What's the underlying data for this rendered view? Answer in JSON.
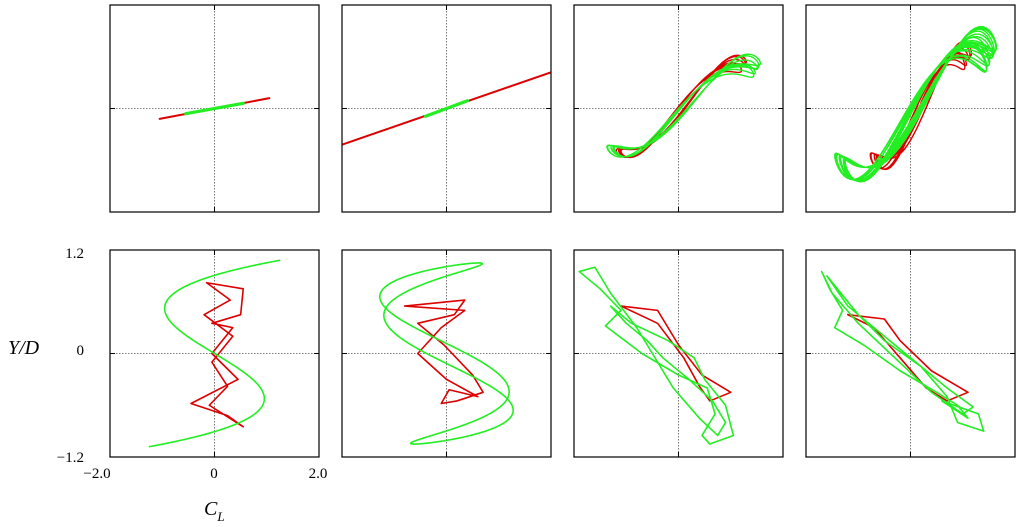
{
  "colors": {
    "red": "#dd0000",
    "green": "#22ee22",
    "axes": "#000000",
    "zero_line": "#555555"
  },
  "chart_data": {
    "type": "line",
    "layout": "2 rows x 4 columns of phase plots",
    "xlabel": "C",
    "xlabel_sub": "L",
    "ylabel": "Y/D",
    "xlim": [
      -2.0,
      2.0
    ],
    "ylim": [
      -1.2,
      1.2
    ],
    "x_tick_labels": [
      "−2.0",
      "0",
      "2.0"
    ],
    "y_tick_labels": [
      "1.2",
      "0",
      "−1.2"
    ],
    "zero_lines": true,
    "series_colors": [
      "red",
      "green"
    ],
    "panels": [
      {
        "row": 1,
        "col": 1,
        "series": [
          {
            "color": "red",
            "kind": "segment",
            "x": [
              -1.05,
              1.05
            ],
            "y": [
              -0.12,
              0.12
            ]
          },
          {
            "color": "green",
            "kind": "segment",
            "x": [
              -0.55,
              0.55
            ],
            "y": [
              -0.06,
              0.06
            ]
          }
        ]
      },
      {
        "row": 1,
        "col": 2,
        "series": [
          {
            "color": "red",
            "kind": "segment",
            "x": [
              -2.0,
              2.0
            ],
            "y": [
              -0.42,
              0.42
            ]
          },
          {
            "color": "green",
            "kind": "segment",
            "x": [
              -0.4,
              0.4
            ],
            "y": [
              -0.09,
              0.09
            ]
          }
        ]
      },
      {
        "row": 1,
        "col": 3,
        "series": [
          {
            "color": "red",
            "kind": "ribbon",
            "cx": 0.05,
            "amp": 1.2,
            "y_amp": 0.6,
            "slope": 0.5,
            "wave": 0.12,
            "turns": 4,
            "spread": 0.05
          },
          {
            "color": "green",
            "kind": "ribbon",
            "cx": 0.1,
            "amp": 1.4,
            "y_amp": 0.58,
            "slope": 0.45,
            "wave": 0.14,
            "turns": 5,
            "spread": 0.07
          }
        ]
      },
      {
        "row": 1,
        "col": 4,
        "series": [
          {
            "color": "red",
            "kind": "ribbon",
            "cx": 0.2,
            "amp": 0.9,
            "y_amp": 0.72,
            "slope": 0.6,
            "wave": 0.18,
            "turns": 5,
            "spread": 0.07
          },
          {
            "color": "green",
            "kind": "ribbon",
            "cx": 0.1,
            "amp": 1.45,
            "y_amp": 0.82,
            "slope": 0.55,
            "wave": 0.26,
            "turns": 12,
            "spread": 0.1
          }
        ]
      },
      {
        "row": 2,
        "col": 1,
        "series": [
          {
            "color": "red",
            "kind": "points",
            "x": [
              -0.15,
              0.55,
              0.5,
              -0.05,
              0.35,
              -0.05,
              0.45,
              -0.45,
              0.25,
              0.55,
              -0.1,
              0.25,
              -0.05,
              0.35,
              -0.2,
              0.3,
              -0.15
            ],
            "y": [
              0.82,
              0.75,
              0.45,
              0.35,
              0.3,
              0.0,
              -0.3,
              -0.58,
              -0.72,
              -0.85,
              -0.6,
              -0.38,
              -0.1,
              0.2,
              0.45,
              0.62,
              0.82
            ]
          },
          {
            "color": "green",
            "kind": "lissajous",
            "cx": 0,
            "A": 1.05,
            "B": 1.08,
            "fx": 3,
            "fy": 1,
            "phase": 1.5708,
            "skew": 0.18
          }
        ]
      },
      {
        "row": 2,
        "col": 2,
        "series": [
          {
            "color": "red",
            "kind": "points",
            "x": [
              -0.8,
              0.35,
              0.15,
              -0.55,
              -0.05,
              0.5,
              0.7,
              0.2,
              -0.1,
              0.05,
              0.6,
              0.0,
              -0.55,
              -0.1,
              0.35,
              -0.8
            ],
            "y": [
              0.55,
              0.62,
              0.45,
              0.35,
              0.1,
              -0.25,
              -0.45,
              -0.55,
              -0.58,
              -0.42,
              -0.5,
              -0.3,
              0.0,
              0.3,
              0.5,
              0.55
            ]
          },
          {
            "color": "green",
            "kind": "lissajous",
            "cx": 0,
            "A": 1.05,
            "B": 1.05,
            "fx": 3,
            "fy": 1,
            "phase": 1.2,
            "skew": -0.35
          }
        ]
      },
      {
        "row": 2,
        "col": 3,
        "series": [
          {
            "color": "red",
            "kind": "points",
            "x": [
              -1.1,
              -0.4,
              0.0,
              0.45,
              1.0,
              0.6,
              0.4,
              0.1,
              -0.4,
              -1.1
            ],
            "y": [
              0.55,
              0.5,
              0.1,
              -0.25,
              -0.45,
              -0.55,
              -0.38,
              -0.05,
              0.35,
              0.55
            ]
          },
          {
            "color": "green",
            "kind": "points",
            "x": [
              -1.6,
              -1.9,
              -1.5,
              -1.1,
              -1.4,
              -0.7,
              0.0,
              0.55,
              0.7,
              0.45,
              0.6,
              1.05,
              0.9,
              0.5,
              0.3,
              -0.2,
              -0.9,
              -1.3,
              -1.0,
              -0.6,
              -0.3,
              0.2,
              0.65,
              0.9,
              0.75,
              0.4,
              -0.1,
              -0.8,
              -1.3,
              -1.6
            ],
            "y": [
              1.0,
              0.95,
              0.75,
              0.5,
              0.32,
              0.0,
              -0.25,
              -0.4,
              -0.7,
              -0.95,
              -1.05,
              -0.95,
              -0.6,
              -0.3,
              -0.05,
              0.15,
              0.35,
              0.55,
              0.35,
              0.15,
              -0.05,
              -0.3,
              -0.55,
              -0.8,
              -0.95,
              -0.75,
              -0.4,
              0.3,
              0.7,
              1.0
            ]
          }
        ]
      },
      {
        "row": 2,
        "col": 4,
        "series": [
          {
            "color": "red",
            "kind": "points",
            "x": [
              -1.2,
              -0.5,
              -0.2,
              0.4,
              1.1,
              0.7,
              0.3,
              -0.2,
              -0.7,
              -1.2
            ],
            "y": [
              0.45,
              0.4,
              0.15,
              -0.2,
              -0.45,
              -0.55,
              -0.4,
              -0.05,
              0.3,
              0.45
            ]
          },
          {
            "color": "green",
            "kind": "points",
            "x": [
              -1.7,
              -1.55,
              -1.3,
              -1.45,
              -0.9,
              -0.2,
              0.5,
              0.9,
              1.1,
              0.6,
              1.3,
              1.4,
              0.9,
              0.7,
              0.2,
              -0.5,
              -1.0,
              -1.4,
              -1.6,
              -1.2,
              -0.6,
              0.1,
              0.7,
              1.2,
              1.0,
              0.4,
              -0.3,
              -1.0,
              -1.5,
              -1.7
            ],
            "y": [
              0.95,
              0.75,
              0.5,
              0.3,
              0.1,
              -0.2,
              -0.45,
              -0.6,
              -0.75,
              -0.55,
              -0.7,
              -0.9,
              -0.8,
              -0.5,
              -0.15,
              0.15,
              0.45,
              0.75,
              0.9,
              0.55,
              0.25,
              -0.1,
              -0.4,
              -0.62,
              -0.7,
              -0.45,
              -0.05,
              0.35,
              0.7,
              0.95
            ]
          }
        ]
      }
    ]
  }
}
